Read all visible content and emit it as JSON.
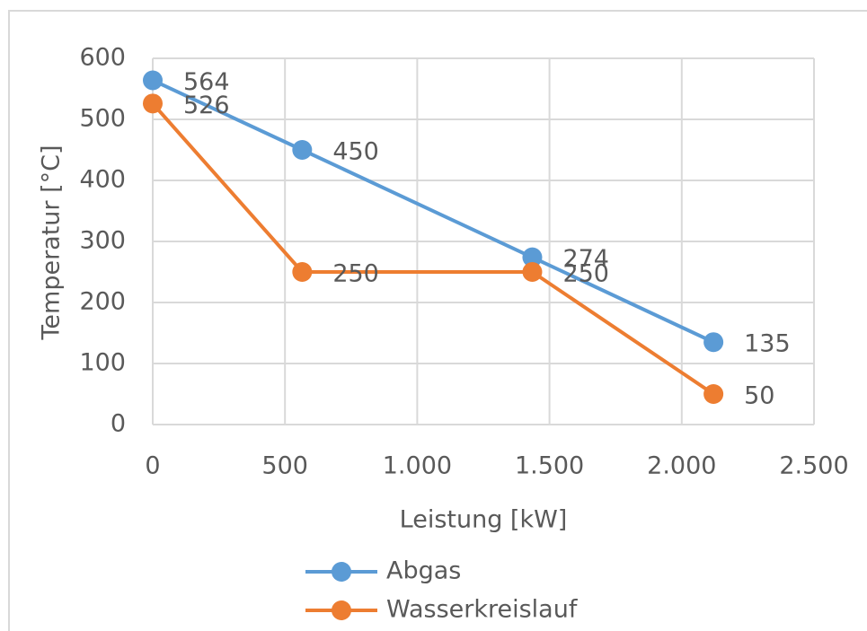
{
  "chart_data": {
    "type": "line",
    "x": [
      0,
      565,
      1435,
      2120
    ],
    "series": [
      {
        "name": "Abgas",
        "color": "#5b9bd5",
        "values": [
          564,
          450,
          274,
          135
        ]
      },
      {
        "name": "Wasserkreislauf",
        "color": "#ed7d31",
        "values": [
          526,
          250,
          250,
          50
        ]
      }
    ],
    "xlabel": "Leistung [kW]",
    "ylabel": "Temperatur [°C]",
    "xlim": [
      0,
      2500
    ],
    "xticks": [
      0,
      500,
      {
        "value": 1000,
        "label": "1.000"
      },
      {
        "value": 1500,
        "label": "1.500"
      },
      {
        "value": 2000,
        "label": "2.000"
      },
      {
        "value": 2500,
        "label": "2.500"
      }
    ],
    "ylim": [
      0,
      600
    ],
    "yticks": [
      0,
      100,
      200,
      300,
      400,
      500,
      600
    ],
    "grid": true,
    "legend": "bottom"
  }
}
